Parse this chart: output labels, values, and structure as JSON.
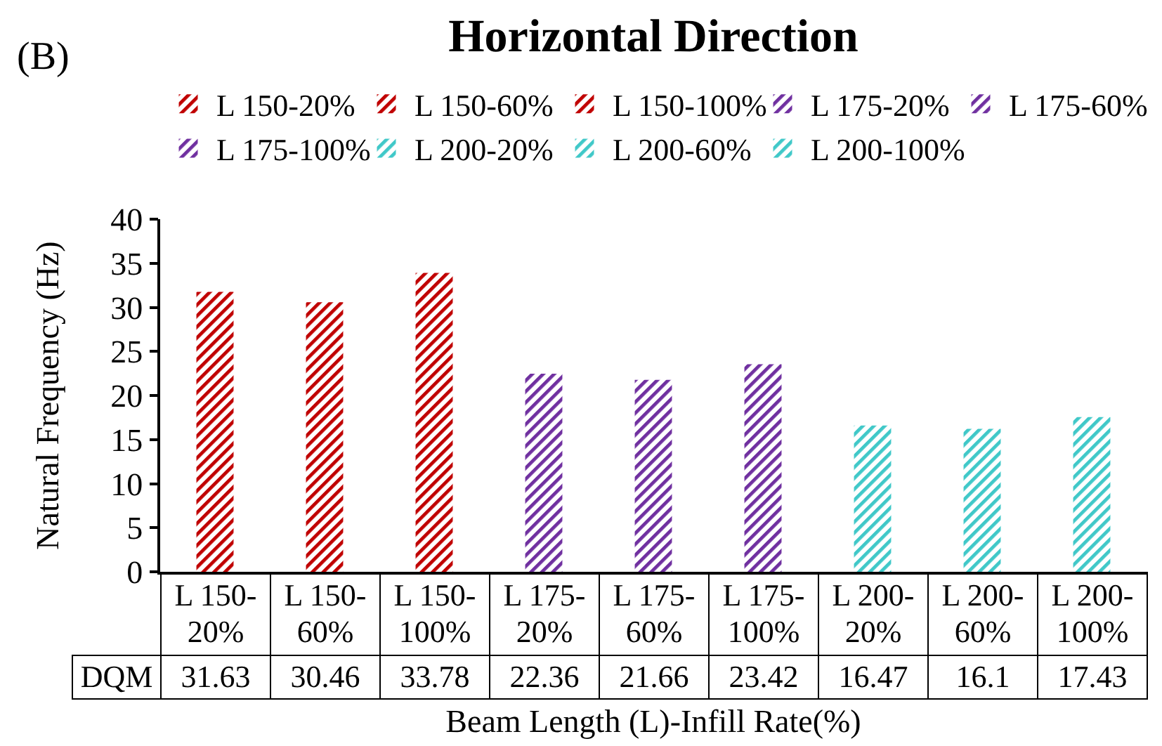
{
  "chart_data": {
    "type": "bar",
    "title": "Horizontal Direction",
    "xlabel": "Beam Length (L)-Infill Rate(%)",
    "ylabel": "Natural Frequency (Hz)",
    "annotations": [
      "(B)",
      "DQM"
    ],
    "categories": [
      "L 150-20%",
      "L 150-60%",
      "L 150-100%",
      "L 175-20%",
      "L 175-60%",
      "L 175-100%",
      "L 200-20%",
      "L 200-60%",
      "L 200-100%"
    ],
    "series": [
      {
        "name": "L 150-20%",
        "color": "#c00000",
        "values": [
          31.63,
          null,
          null,
          null,
          null,
          null,
          null,
          null,
          null
        ]
      },
      {
        "name": "L 150-60%",
        "color": "#c00000",
        "values": [
          null,
          30.46,
          null,
          null,
          null,
          null,
          null,
          null,
          null
        ]
      },
      {
        "name": "L 150-100%",
        "color": "#c00000",
        "values": [
          null,
          null,
          33.78,
          null,
          null,
          null,
          null,
          null,
          null
        ]
      },
      {
        "name": "L 175-20%",
        "color": "#7030a0",
        "values": [
          null,
          null,
          null,
          22.36,
          null,
          null,
          null,
          null,
          null
        ]
      },
      {
        "name": "L 175-60%",
        "color": "#7030a0",
        "values": [
          null,
          null,
          null,
          null,
          21.66,
          null,
          null,
          null,
          null
        ]
      },
      {
        "name": "L 175-100%",
        "color": "#7030a0",
        "values": [
          null,
          null,
          null,
          null,
          null,
          23.42,
          null,
          null,
          null
        ]
      },
      {
        "name": "L 200-20%",
        "color": "#40c8c8",
        "values": [
          null,
          null,
          null,
          null,
          null,
          null,
          16.47,
          null,
          null
        ]
      },
      {
        "name": "L 200-60%",
        "color": "#40c8c8",
        "values": [
          null,
          null,
          null,
          null,
          null,
          null,
          null,
          16.1,
          null
        ]
      },
      {
        "name": "L 200-100%",
        "color": "#40c8c8",
        "values": [
          null,
          null,
          null,
          null,
          null,
          null,
          null,
          null,
          17.43
        ]
      }
    ],
    "ylim": [
      0,
      40
    ],
    "yticks": [
      0,
      5,
      10,
      15,
      20,
      25,
      30,
      35,
      40
    ],
    "grid": false,
    "legend": "top",
    "data_labels": true
  }
}
